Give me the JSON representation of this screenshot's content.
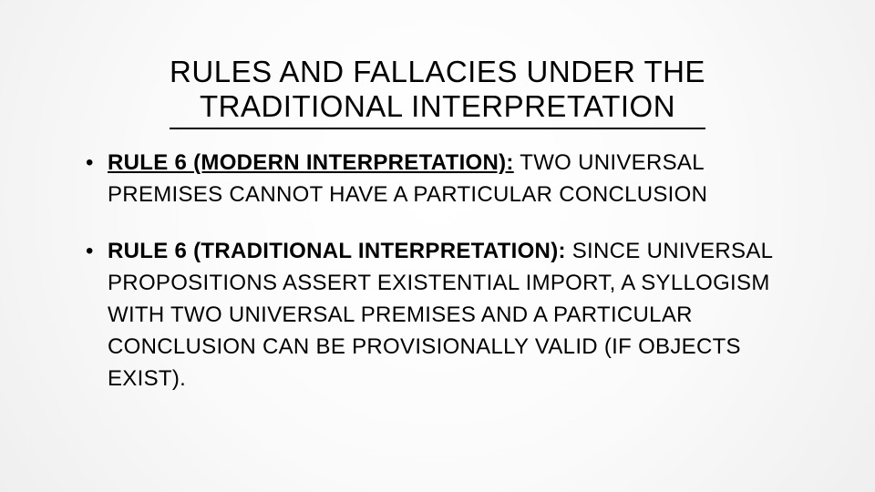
{
  "colors": {
    "text": "#000000",
    "bg_center": "#ffffff",
    "bg_edge": "#efefef",
    "underline": "#000000"
  },
  "typography": {
    "family": "Arial",
    "title_fontsize": 33,
    "body_fontsize": 24,
    "title_weight": 400,
    "bold_weight": 700
  },
  "title": {
    "line1": "RULES AND FALLACIES UNDER THE",
    "line2": "TRADITIONAL INTERPRETATION"
  },
  "bullets": [
    {
      "label": "RULE 6 (MODERN INTERPRETATION):",
      "body": " TWO UNIVERSAL PREMISES CANNOT HAVE A PARTICULAR CONCLUSION"
    },
    {
      "label": "RULE 6 (TRADITIONAL INTERPRETATION):",
      "body": " SINCE UNIVERSAL PROPOSITIONS ASSERT EXISTENTIAL IMPORT, A SYLLOGISM WITH TWO UNIVERSAL PREMISES AND A PARTICULAR CONCLUSION CAN BE PROVISIONALLY VALID (IF OBJECTS EXIST)."
    }
  ]
}
